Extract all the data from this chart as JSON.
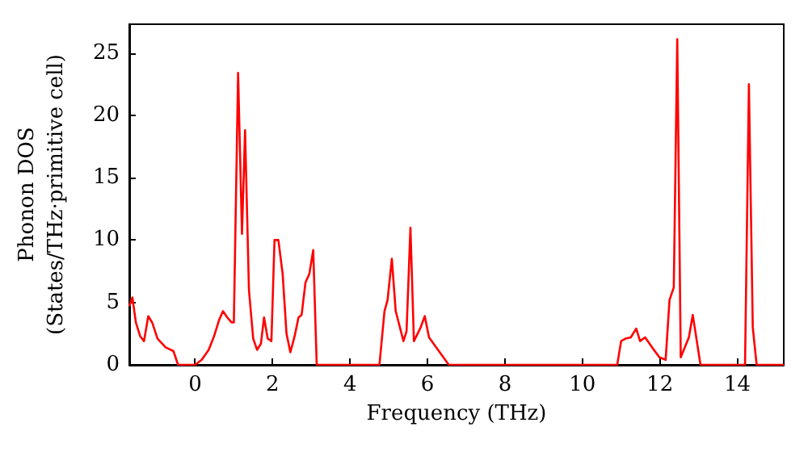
{
  "chart_data": {
    "type": "line",
    "xlabel": "Frequency (THz)",
    "ylabel": "Phonon DOS\n(States/THz·primitive cell)",
    "xlim": [
      -1.7,
      15.2
    ],
    "ylim": [
      0,
      27.3
    ],
    "xticks": [
      0,
      2,
      4,
      6,
      8,
      10,
      12,
      14
    ],
    "yticks": [
      0,
      5,
      10,
      15,
      20,
      25
    ],
    "grid": false,
    "marker": "none",
    "line_style": "solid",
    "series": [
      {
        "color": "#ff0000",
        "x": [
          -1.7,
          -1.62,
          -1.53,
          -1.42,
          -1.32,
          -1.21,
          -1.11,
          -0.97,
          -0.76,
          -0.56,
          -0.44,
          0,
          0.17,
          0.35,
          0.49,
          0.62,
          0.72,
          0.83,
          0.94,
          1.0,
          1.11,
          1.21,
          1.29,
          1.39,
          1.5,
          1.6,
          1.7,
          1.78,
          1.875,
          1.97,
          2.05,
          2.15,
          2.26,
          2.36,
          2.46,
          2.57,
          2.67,
          2.75,
          2.85,
          2.95,
          3.05,
          3.14,
          4.76,
          4.89,
          4.97,
          5.08,
          5.18,
          5.38,
          5.46,
          5.56,
          5.65,
          5.81,
          5.93,
          6.04,
          6.25,
          6.55,
          10.9,
          11.0,
          11.11,
          11.25,
          11.39,
          11.49,
          11.62,
          11.8,
          11.99,
          12.15,
          12.25,
          12.36,
          12.45,
          12.54,
          12.75,
          12.85,
          13.05,
          14.2,
          14.3,
          14.4,
          14.5,
          15.2
        ],
        "values": [
          4.7,
          5.4,
          3.4,
          2.3,
          1.9,
          3.9,
          3.4,
          2.1,
          1.4,
          1.1,
          0,
          0,
          0.4,
          1.2,
          2.3,
          3.6,
          4.3,
          3.8,
          3.4,
          3.4,
          23.4,
          10.5,
          18.8,
          6.0,
          2.1,
          1.2,
          1.7,
          3.8,
          2.1,
          1.9,
          10.0,
          10.0,
          7.3,
          2.5,
          1.0,
          2.3,
          3.8,
          4.0,
          6.6,
          7.3,
          9.2,
          0,
          0,
          4.3,
          5.2,
          8.5,
          4.3,
          1.9,
          2.7,
          11.0,
          1.9,
          2.9,
          3.9,
          2.2,
          1.3,
          0,
          0,
          1.9,
          2.1,
          2.2,
          2.9,
          1.9,
          2.2,
          1.4,
          0.6,
          0.4,
          5.2,
          6.2,
          26.1,
          0.6,
          2.2,
          4.0,
          0,
          0,
          22.5,
          3.0,
          0,
          0
        ]
      }
    ]
  }
}
